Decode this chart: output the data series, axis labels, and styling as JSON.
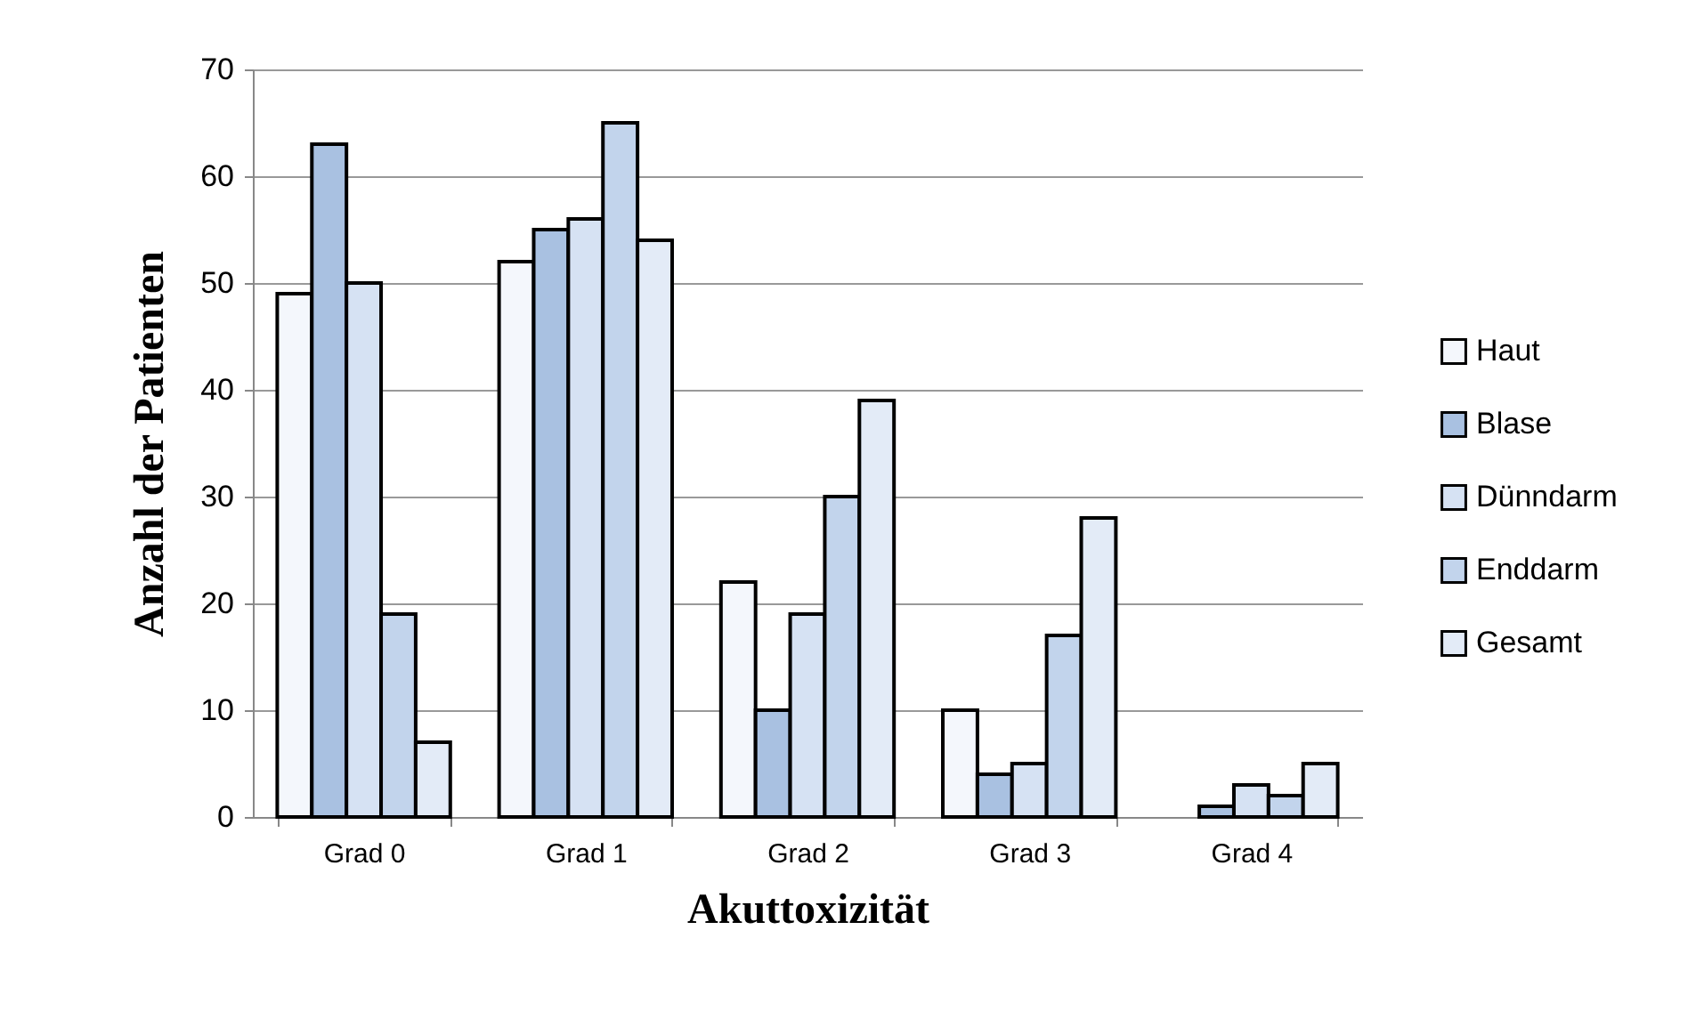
{
  "chart_data": {
    "type": "bar",
    "xlabel": "Akuttoxizität",
    "ylabel": "Anzahl der Patienten",
    "categories": [
      "Grad 0",
      "Grad 1",
      "Grad 2",
      "Grad 3",
      "Grad 4"
    ],
    "series": [
      {
        "name": "Haut",
        "color": "#f4f7fc",
        "values": [
          49,
          52,
          22,
          10,
          null
        ]
      },
      {
        "name": "Blase",
        "color": "#a9c1e1",
        "values": [
          63,
          55,
          10,
          4,
          1
        ]
      },
      {
        "name": "Dünndarm",
        "color": "#d6e2f3",
        "values": [
          50,
          56,
          19,
          5,
          3
        ]
      },
      {
        "name": "Enddarm",
        "color": "#c2d4ec",
        "values": [
          19,
          65,
          30,
          17,
          2
        ]
      },
      {
        "name": "Gesamt",
        "color": "#e3ebf7",
        "values": [
          7,
          54,
          39,
          28,
          5
        ]
      }
    ],
    "ylim": [
      0,
      70
    ],
    "yticks": [
      0,
      10,
      20,
      30,
      40,
      50,
      60,
      70
    ],
    "grid": "y",
    "legend": "right"
  }
}
